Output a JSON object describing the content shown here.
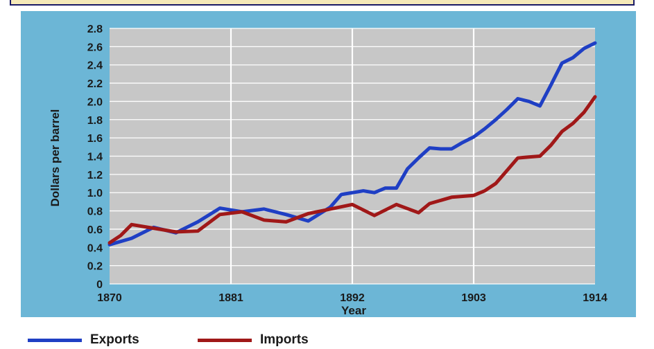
{
  "chart_data": {
    "type": "line",
    "title": "",
    "xlabel": "Year",
    "ylabel": "Dollars per barrel",
    "xlim": [
      1870,
      1914
    ],
    "ylim": [
      0,
      2.8
    ],
    "x_ticks": [
      1870,
      1881,
      1892,
      1903,
      1914
    ],
    "x_tick_labels": [
      "1870",
      "1881",
      "1892",
      "1903",
      "1914"
    ],
    "y_ticks": [
      0,
      0.2,
      0.4,
      0.6,
      0.8,
      1.0,
      1.2,
      1.4,
      1.6,
      1.8,
      2.0,
      2.2,
      2.4,
      2.6,
      2.8
    ],
    "y_tick_labels": [
      "0",
      "0.2",
      "0.4",
      "0.6",
      "0.8",
      "1.0",
      "1.2",
      "1.4",
      "1.6",
      "1.8",
      "2.0",
      "2.2",
      "2.4",
      "2.6",
      "2.8"
    ],
    "grid": true,
    "legend_position": "bottom-left",
    "series": [
      {
        "name": "Exports",
        "color": "#1f3fc4",
        "x": [
          1870,
          1872,
          1874,
          1876,
          1878,
          1880,
          1882,
          1884,
          1886,
          1888,
          1890,
          1891,
          1893,
          1894,
          1895,
          1896,
          1897,
          1898,
          1899,
          1900,
          1901,
          1902,
          1903,
          1904,
          1905,
          1906,
          1907,
          1908,
          1909,
          1910,
          1911,
          1912,
          1913,
          1914
        ],
        "y": [
          0.43,
          0.5,
          0.62,
          0.56,
          0.68,
          0.83,
          0.79,
          0.82,
          0.76,
          0.69,
          0.84,
          0.98,
          1.02,
          1.0,
          1.05,
          1.05,
          1.26,
          1.38,
          1.49,
          1.48,
          1.48,
          1.55,
          1.61,
          1.7,
          1.8,
          1.91,
          2.03,
          2.0,
          1.95,
          2.18,
          2.42,
          2.48,
          2.58,
          2.64
        ]
      },
      {
        "name": "Imports",
        "color": "#a01818",
        "x": [
          1870,
          1871,
          1872,
          1874,
          1876,
          1878,
          1880,
          1882,
          1884,
          1886,
          1888,
          1890,
          1892,
          1894,
          1896,
          1898,
          1899,
          1901,
          1903,
          1904,
          1905,
          1906,
          1907,
          1908,
          1909,
          1910,
          1911,
          1912,
          1913,
          1914
        ],
        "y": [
          0.45,
          0.53,
          0.65,
          0.61,
          0.57,
          0.58,
          0.76,
          0.79,
          0.7,
          0.68,
          0.77,
          0.82,
          0.87,
          0.75,
          0.87,
          0.78,
          0.88,
          0.95,
          0.97,
          1.02,
          1.1,
          1.24,
          1.38,
          1.39,
          1.4,
          1.52,
          1.67,
          1.76,
          1.88,
          2.05
        ]
      }
    ]
  }
}
